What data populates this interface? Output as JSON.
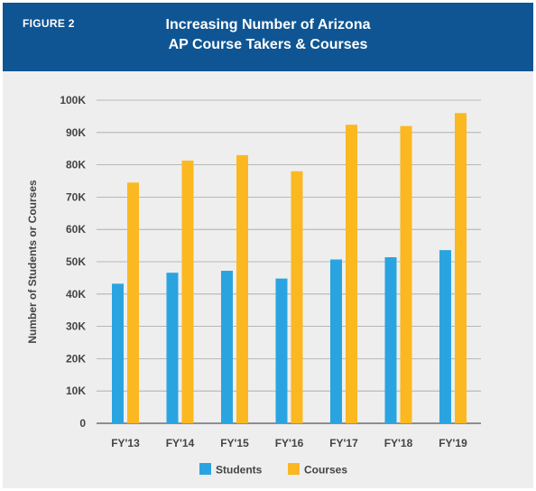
{
  "header": {
    "figure_label": "FIGURE 2",
    "title_line1": "Increasing Number of Arizona",
    "title_line2": "AP Course Takers & Courses"
  },
  "colors": {
    "header_bg": "#0f5593",
    "students": "#2aa4e0",
    "courses": "#fbb820"
  },
  "chart_data": {
    "type": "bar",
    "ylabel": "Number of Students or Courses",
    "ylim": [
      0,
      100000
    ],
    "yticks": [
      "0",
      "10K",
      "20K",
      "30K",
      "40K",
      "50K",
      "60K",
      "70K",
      "80K",
      "90K",
      "100K"
    ],
    "categories": [
      "FY'13",
      "FY'14",
      "FY'15",
      "FY'16",
      "FY'17",
      "FY'18",
      "FY'19"
    ],
    "series": [
      {
        "name": "Students",
        "values": [
          43200,
          46600,
          47200,
          44800,
          50700,
          51400,
          53600
        ]
      },
      {
        "name": "Courses",
        "values": [
          74500,
          81300,
          83000,
          78000,
          92400,
          92000,
          96000
        ]
      }
    ],
    "grid": true,
    "legend": "bottom"
  }
}
